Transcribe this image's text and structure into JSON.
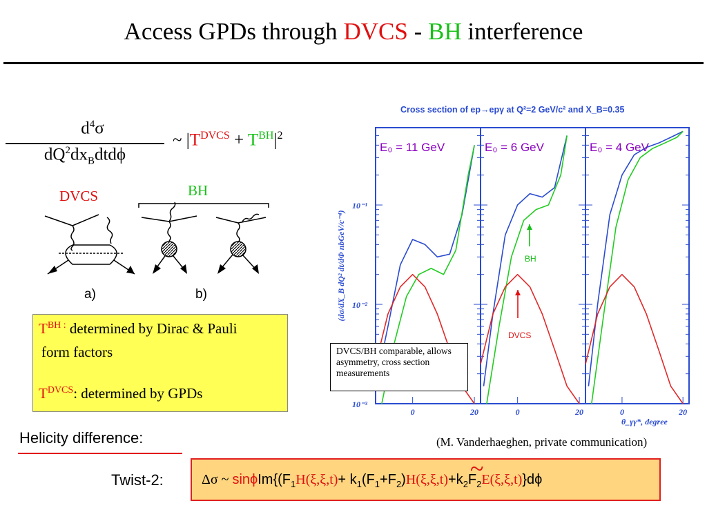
{
  "title": {
    "pre": "Access GPDs through ",
    "dvcs": "DVCS",
    "dash": " - ",
    "bh": "BH",
    "post": " interference"
  },
  "formula_xsec": {
    "numerator": {
      "d": "d",
      "exp": "4",
      "sigma": "σ"
    },
    "denominator": {
      "a": "dQ",
      "exp": "2",
      "b": "dx",
      "sub": "B",
      "c": "dtdϕ"
    },
    "prop": {
      "pre": "~ |",
      "t1": "T",
      "t1sup": "DVCS",
      "plus": " + ",
      "t2": "T",
      "t2sup": "BH",
      "post": "|",
      "exp": "2"
    }
  },
  "diagrams": {
    "dvcs_label": "DVCS",
    "bh_label": "BH",
    "sub_a": "a)",
    "sub_b": "b)"
  },
  "yellow_box": {
    "bh_t": "T",
    "bh_sup": "BH :",
    "bh_text": " determined by Dirac & Pauli",
    "bh_text2": "form factors",
    "dvcs_t": "T",
    "dvcs_sup": "DVCS",
    "dvcs_text": ": determined by GPDs"
  },
  "chart_data": {
    "type": "line",
    "title": "Cross section of ep→epγ at Q²=2 GeV/c² and X_B=0.35",
    "ylabel": "(dσ/dX_B dQ² dt/dΦ nbGeV/c⁻⁴)",
    "xlabel": "θ_γγ*, degree",
    "yscale": "log",
    "ylim": [
      0.001,
      0.6
    ],
    "y_ticks": [
      "10⁻¹",
      "10⁻²",
      "10⁻³"
    ],
    "x_ticks": [
      "0",
      "20"
    ],
    "panels": [
      {
        "label": "E₀ = 11 GeV",
        "xlim": [
          -12,
          22
        ],
        "series": [
          {
            "name": "DVCS+BH",
            "color": "#2a4bd0",
            "x": [
              -12,
              -8,
              -4,
              0,
              4,
              8,
              12,
              16,
              20
            ],
            "y": [
              0.0015,
              0.006,
              0.025,
              0.045,
              0.04,
              0.03,
              0.032,
              0.08,
              0.4
            ]
          },
          {
            "name": "BH",
            "color": "#22cc22",
            "x": [
              -10,
              -6,
              -2,
              2,
              6,
              10,
              14,
              18,
              20
            ],
            "y": [
              0.0009,
              0.004,
              0.012,
              0.02,
              0.023,
              0.02,
              0.035,
              0.2,
              0.4
            ]
          },
          {
            "name": "DVCS",
            "color": "#e02a2a",
            "x": [
              -12,
              -8,
              -4,
              0,
              4,
              8,
              12,
              16,
              20
            ],
            "y": [
              0.0025,
              0.008,
              0.015,
              0.02,
              0.015,
              0.008,
              0.0035,
              0.0015,
              0.001
            ]
          }
        ]
      },
      {
        "label": "E₀ = 6 GeV",
        "xlim": [
          -12,
          22
        ],
        "series": [
          {
            "name": "DVCS+BH",
            "color": "#2a4bd0",
            "x": [
              -11,
              -8,
              -4,
              0,
              4,
              8,
              12,
              16
            ],
            "y": [
              0.0015,
              0.008,
              0.05,
              0.1,
              0.13,
              0.12,
              0.15,
              0.5
            ]
          },
          {
            "name": "BH",
            "color": "#22cc22",
            "x": [
              -10,
              -6,
              -2,
              2,
              6,
              10,
              14,
              16
            ],
            "y": [
              0.001,
              0.006,
              0.03,
              0.07,
              0.09,
              0.1,
              0.2,
              0.5
            ]
          },
          {
            "name": "DVCS",
            "color": "#e02a2a",
            "x": [
              -12,
              -8,
              -4,
              0,
              4,
              8,
              12,
              16,
              20
            ],
            "y": [
              0.0025,
              0.008,
              0.015,
              0.02,
              0.015,
              0.008,
              0.0035,
              0.0015,
              0.001
            ]
          }
        ]
      },
      {
        "label": "E₀ = 4 GeV",
        "xlim": [
          -12,
          22
        ],
        "series": [
          {
            "name": "DVCS+BH",
            "color": "#2a4bd0",
            "x": [
              -11,
              -8,
              -4,
              0,
              4,
              8,
              12,
              16,
              20
            ],
            "y": [
              0.0015,
              0.01,
              0.08,
              0.2,
              0.32,
              0.38,
              0.42,
              0.48,
              0.55
            ]
          },
          {
            "name": "BH",
            "color": "#22cc22",
            "x": [
              -10,
              -6,
              -2,
              2,
              6,
              10,
              14,
              18,
              20
            ],
            "y": [
              0.001,
              0.008,
              0.06,
              0.18,
              0.3,
              0.37,
              0.42,
              0.48,
              0.55
            ]
          },
          {
            "name": "DVCS",
            "color": "#e02a2a",
            "x": [
              -12,
              -8,
              -4,
              0,
              4,
              8,
              12,
              16,
              20
            ],
            "y": [
              0.0025,
              0.008,
              0.015,
              0.02,
              0.015,
              0.008,
              0.0035,
              0.0015,
              0.001
            ]
          }
        ]
      }
    ],
    "annotations": {
      "bh": "BH",
      "dvcs": "DVCS"
    }
  },
  "note_box": "DVCS/BH comparable, allows asymmetry, cross section measurements",
  "helicity_label": "Helicity difference:",
  "reference": "(M. Vanderhaeghen, private communication)",
  "twist_label": "Twist-2:",
  "twist_formula": {
    "p1": "Δσ ~ ",
    "sinphi": "sinϕ",
    "p2": "Im{(F",
    "s1": "1",
    "H": "H(ξ,ξ,t)",
    "p3": "+ k",
    "s2": "1",
    "p4": "(F",
    "s3": "1",
    "p5": "+F",
    "s4": "2",
    "p6": ")",
    "Ht": "H(ξ,ξ,t)",
    "p7": "+k",
    "s5": "2",
    "p8": "F",
    "s6": "2",
    "E": "E(ξ,ξ,t)",
    "p9": "}dϕ",
    "tilde": "~"
  },
  "colors": {
    "red": "#e01010",
    "green": "#16c016",
    "blue": "#2a4bd0",
    "purple": "#8a00c0",
    "yellow": "#ffff55",
    "orange": "#ffd580"
  }
}
